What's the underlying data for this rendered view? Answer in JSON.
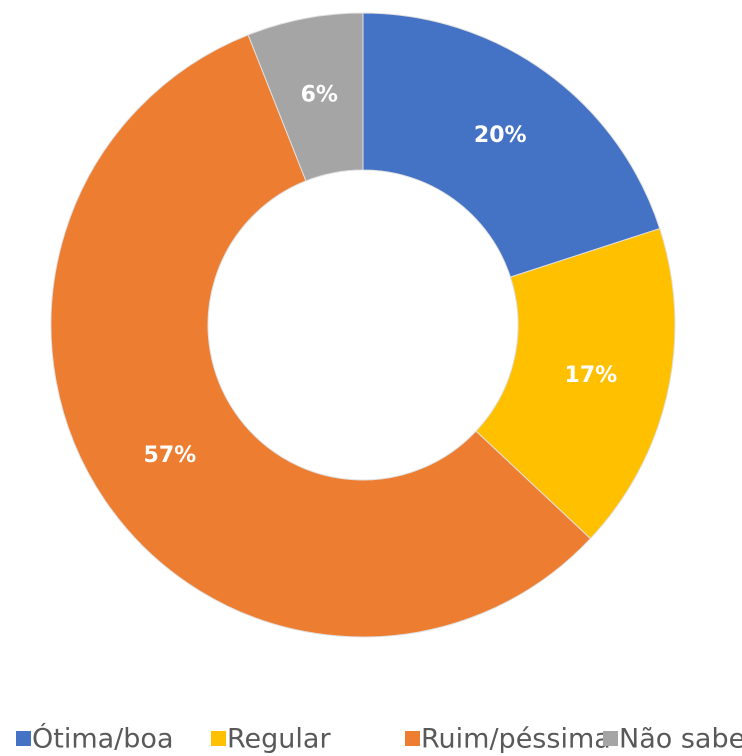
{
  "chart_data": {
    "type": "donut",
    "categories": [
      "Ótima/boa",
      "Regular",
      "Ruim/péssima",
      "Não sabe"
    ],
    "values": [
      20,
      17,
      57,
      6
    ],
    "value_labels": [
      "20%",
      "17%",
      "57%",
      "6%"
    ],
    "colors": [
      "#4472c4",
      "#ffc000",
      "#ed7d31",
      "#a5a5a5"
    ],
    "legend": "bottom"
  }
}
